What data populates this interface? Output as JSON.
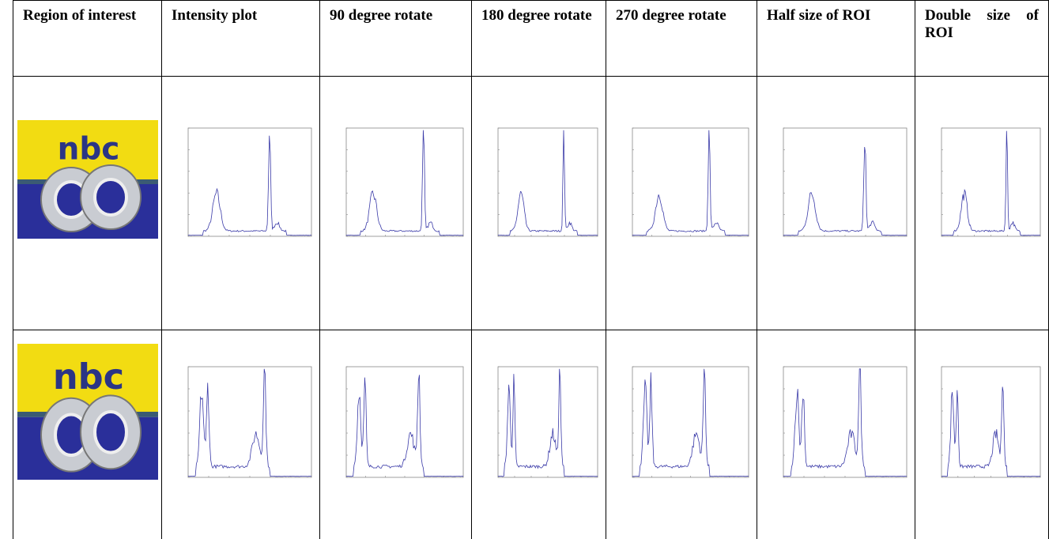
{
  "table": {
    "header": [
      "Region of interest",
      "Intensity plot",
      "90 degree rotate",
      "180 degree rotate",
      "270 degree rotate",
      "Half size of ROI",
      "Double size of ROI"
    ],
    "rows": [
      {
        "logo": "nbc"
      },
      {
        "logo": "nbc"
      }
    ]
  }
}
